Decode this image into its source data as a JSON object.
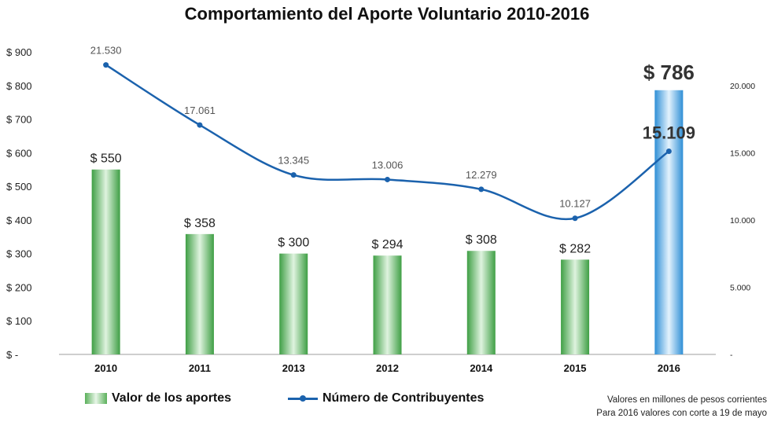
{
  "chart_data": {
    "type": "bar",
    "title": "Comportamiento del Aporte Voluntario 2010-2016",
    "categories": [
      "2010",
      "2011",
      "2013",
      "2012",
      "2014",
      "2015",
      "2016"
    ],
    "series": [
      {
        "name": "Valor de los aportes",
        "type": "bar",
        "axis": "left",
        "values": [
          550,
          358,
          300,
          294,
          308,
          282,
          786
        ],
        "labels": [
          "$ 550",
          "$ 358",
          "$ 300",
          "$ 294",
          "$ 308",
          "$ 282",
          "$ 786"
        ],
        "color": "#4caf50",
        "highlight_color": "#3a9ad9"
      },
      {
        "name": "Número de Contribuyentes",
        "type": "line",
        "axis": "right",
        "values": [
          21530,
          17061,
          13345,
          13006,
          12279,
          10127,
          15109
        ],
        "labels": [
          "21.530",
          "17.061",
          "13.345",
          "13.006",
          "12.279",
          "10.127",
          "15.109"
        ],
        "color": "#1b62ad"
      }
    ],
    "y_left": {
      "range": [
        0,
        900
      ],
      "ticks": [
        0,
        100,
        200,
        300,
        400,
        500,
        600,
        700,
        800,
        900
      ],
      "tick_labels": [
        "$ -",
        "$ 100",
        "$ 200",
        "$ 300",
        "$ 400",
        "$ 500",
        "$ 600",
        "$ 700",
        "$ 800",
        "$ 900"
      ]
    },
    "y_right": {
      "range": [
        0,
        22500
      ],
      "ticks": [
        0,
        5000,
        10000,
        15000,
        20000
      ],
      "tick_labels": [
        "-",
        "5.000",
        "10.000",
        "15.000",
        "20.000"
      ]
    },
    "grid": false,
    "legend_position": "bottom-left",
    "notes": [
      "Valores en millones de pesos corrientes",
      "Para 2016 valores con corte a 19 de mayo"
    ]
  }
}
